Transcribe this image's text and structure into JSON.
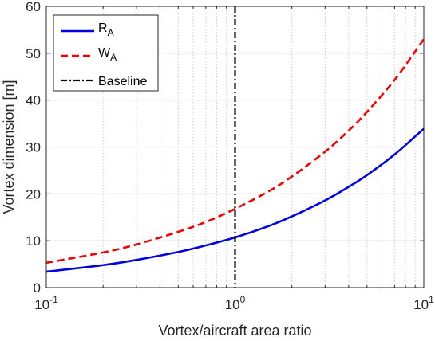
{
  "chart_data": {
    "type": "line",
    "title": "",
    "xlabel": "Vortex/aircraft area ratio",
    "ylabel": "Vortex dimension [m]",
    "xscale": "log",
    "xlim": [
      0.1,
      10
    ],
    "ylim": [
      0,
      60
    ],
    "yticks": [
      0,
      10,
      20,
      30,
      40,
      50,
      60
    ],
    "xticks": [
      {
        "base": "10",
        "exp": "-1",
        "value": 0.1
      },
      {
        "base": "10",
        "exp": "0",
        "value": 1
      },
      {
        "base": "10",
        "exp": "1",
        "value": 10
      }
    ],
    "grid": true,
    "legend_position": "top-left",
    "series": [
      {
        "name_main": "R",
        "name_sub": "A",
        "color": "#0000dd",
        "style": "solid",
        "x": [
          0.1,
          0.2,
          0.3,
          0.5,
          0.7,
          1,
          1.5,
          2,
          3,
          4,
          5,
          7,
          10
        ],
        "values": [
          3.4,
          4.8,
          5.9,
          7.6,
          9.0,
          10.7,
          13.1,
          15.2,
          18.6,
          21.5,
          24.0,
          28.4,
          33.9
        ]
      },
      {
        "name_main": "W",
        "name_sub": "A",
        "color": "#ee0000",
        "style": "dashed",
        "x": [
          0.1,
          0.2,
          0.3,
          0.5,
          0.7,
          1,
          1.5,
          2,
          3,
          4,
          5,
          7,
          10
        ],
        "values": [
          5.3,
          7.5,
          9.2,
          11.9,
          14.0,
          16.8,
          20.5,
          23.7,
          29.0,
          33.5,
          37.5,
          44.3,
          53.0
        ]
      }
    ],
    "baseline": {
      "name": "Baseline",
      "x": 1,
      "color": "#000000",
      "style": "dashdot"
    }
  }
}
